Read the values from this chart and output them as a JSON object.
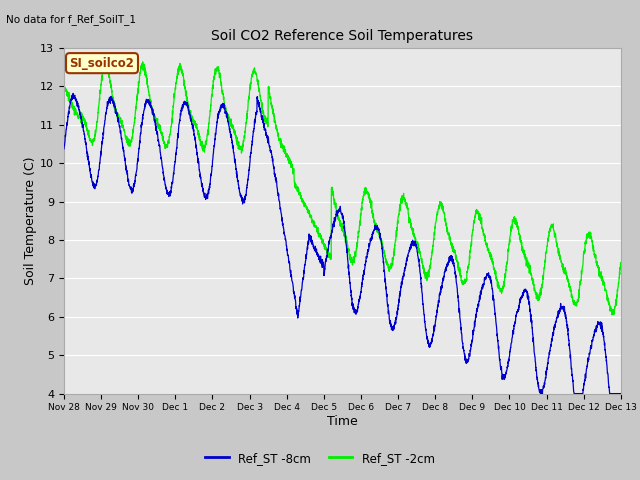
{
  "title": "Soil CO2 Reference Soil Temperatures",
  "no_data_text": "No data for f_Ref_SoilT_1",
  "legend_label_text": "SI_soilco2",
  "xlabel": "Time",
  "ylabel": "Soil Temperature (C)",
  "ylim": [
    4.0,
    13.0
  ],
  "yticks": [
    4.0,
    5.0,
    6.0,
    7.0,
    8.0,
    9.0,
    10.0,
    11.0,
    12.0,
    13.0
  ],
  "plot_bg_color": "#e8e8e8",
  "grid_color": "#ffffff",
  "line_blue": "#0000cc",
  "line_green": "#00ee00",
  "legend_series": [
    {
      "label": "Ref_ST -8cm",
      "color": "#0000cc"
    },
    {
      "label": "Ref_ST -2cm",
      "color": "#00ee00"
    }
  ],
  "tick_labels": [
    "Nov 28",
    "Nov 29",
    "Nov 30",
    "Dec 1",
    "Dec 2",
    "Dec 3",
    "Dec 4",
    "Dec 5",
    "Dec 6",
    "Dec 7",
    "Dec 8",
    "Dec 9",
    "Dec 10",
    "Dec 11",
    "Dec 12",
    "Dec 13"
  ],
  "si_box_facecolor": "#ffffcc",
  "si_box_edgecolor": "#993300",
  "si_text_color": "#993300"
}
